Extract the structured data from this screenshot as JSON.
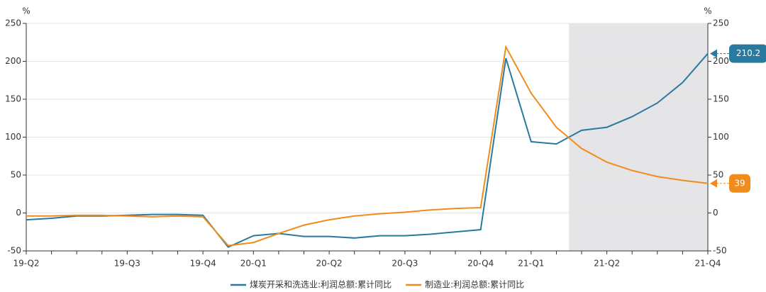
{
  "chart_data": {
    "type": "line",
    "y_label": "%",
    "y2_label": "%",
    "categories": [
      "19-Q2",
      null,
      null,
      null,
      "19-Q3",
      null,
      null,
      "19-Q4",
      null,
      "20-Q1",
      null,
      null,
      "20-Q2",
      null,
      null,
      "20-Q3",
      null,
      null,
      "20-Q4",
      null,
      "21-Q1",
      null,
      null,
      "21-Q2",
      null,
      null,
      null,
      "21-Q4"
    ],
    "series": [
      {
        "name": "煤炭开采和洗选业:利润总额:累计同比",
        "color": "#2a7aa0",
        "values": [
          -9,
          -7,
          -4,
          -4,
          -3,
          -2,
          -2,
          -3,
          -45,
          -30,
          -27,
          -31,
          -31,
          -33,
          -30,
          -30,
          -28,
          -25,
          -22,
          204,
          94,
          91,
          109,
          113,
          127,
          145,
          172,
          210.2
        ]
      },
      {
        "name": "制造业:利润总额:累计同比",
        "color": "#f08c1e",
        "axis": "y2",
        "values": [
          -4,
          -4,
          -3,
          -3,
          -4,
          -5,
          -4,
          -5,
          -43,
          -39,
          -27,
          -16,
          -9,
          -4,
          -1,
          1,
          4,
          6,
          7,
          219,
          158,
          113,
          85,
          67,
          56,
          48,
          43,
          39
        ]
      }
    ],
    "ylim": [
      -50,
      250
    ],
    "yticks": [
      -50,
      0,
      50,
      100,
      150,
      200,
      250
    ],
    "y2lim": [
      -50,
      250
    ],
    "y2ticks": [
      -50,
      0,
      50,
      100,
      150,
      200,
      250
    ],
    "grid": true
  }
}
